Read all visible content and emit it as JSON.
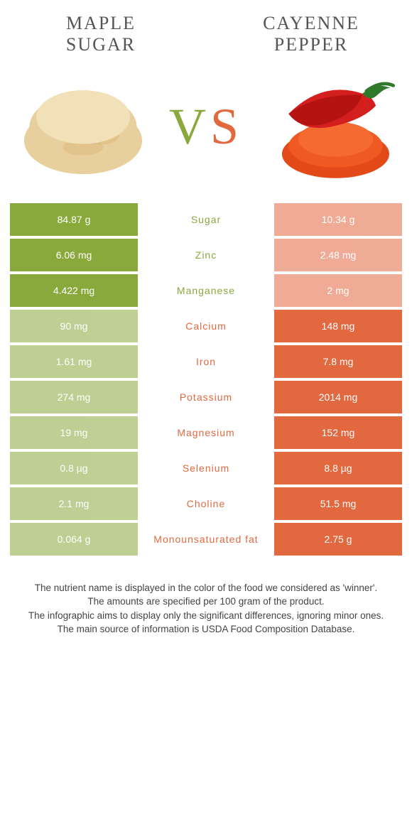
{
  "titles": {
    "left": "Maple sugar",
    "right": "Cayenne pepper"
  },
  "vs": {
    "v": "V",
    "s": "S"
  },
  "colors": {
    "left": "#8aa93c",
    "right": "#e2683f",
    "text": "#555555"
  },
  "rows": [
    {
      "nutrient": "Sugar",
      "left": "84.87 g",
      "right": "10.34 g",
      "winner": "left"
    },
    {
      "nutrient": "Zinc",
      "left": "6.06 mg",
      "right": "2.48 mg",
      "winner": "left"
    },
    {
      "nutrient": "Manganese",
      "left": "4.422 mg",
      "right": "2 mg",
      "winner": "left"
    },
    {
      "nutrient": "Calcium",
      "left": "90 mg",
      "right": "148 mg",
      "winner": "right"
    },
    {
      "nutrient": "Iron",
      "left": "1.61 mg",
      "right": "7.8 mg",
      "winner": "right"
    },
    {
      "nutrient": "Potassium",
      "left": "274 mg",
      "right": "2014 mg",
      "winner": "right"
    },
    {
      "nutrient": "Magnesium",
      "left": "19 mg",
      "right": "152 mg",
      "winner": "right"
    },
    {
      "nutrient": "Selenium",
      "left": "0.8 µg",
      "right": "8.8 µg",
      "winner": "right"
    },
    {
      "nutrient": "Choline",
      "left": "2.1 mg",
      "right": "51.5 mg",
      "winner": "right"
    },
    {
      "nutrient": "Monounsaturated fat",
      "left": "0.064 g",
      "right": "2.75 g",
      "winner": "right"
    }
  ],
  "footer": {
    "l1": "The nutrient name is displayed in the color of the food we considered as 'winner'.",
    "l2": "The amounts are specified per 100 gram of the product.",
    "l3": "The infographic aims to display only the significant differences, ignoring minor ones.",
    "l4": "The main source of information is USDA Food Composition Database."
  }
}
